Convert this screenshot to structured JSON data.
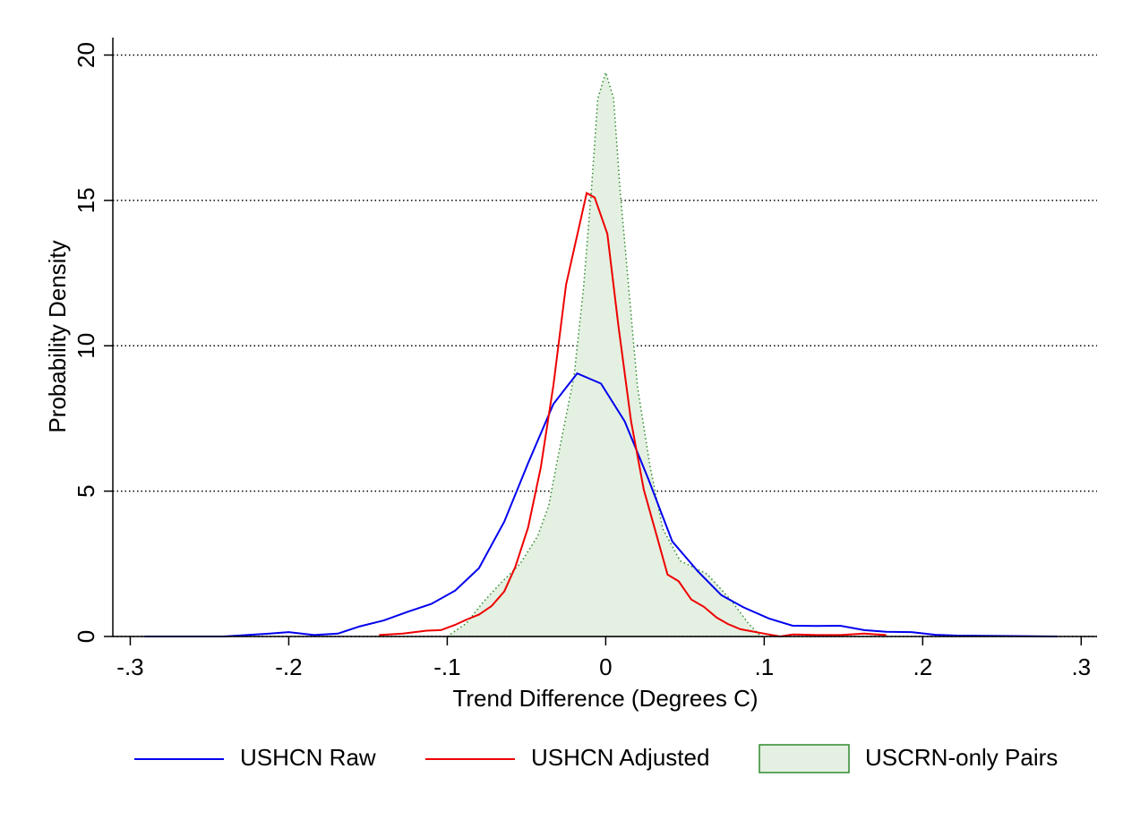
{
  "chart_data": {
    "type": "line",
    "x_label": "Trend Difference (Degrees C)",
    "y_label": "Probability Density",
    "xlim": [
      -0.311,
      0.31
    ],
    "ylim": [
      0,
      20.6
    ],
    "xticks": [
      {
        "value": -0.3,
        "label": "-.3"
      },
      {
        "value": -0.2,
        "label": "-.2"
      },
      {
        "value": -0.1,
        "label": "-.1"
      },
      0,
      {
        "value": 0.1,
        "label": ".1"
      },
      {
        "value": 0.2,
        "label": ".2"
      },
      {
        "value": 0.3,
        "label": ".3"
      }
    ],
    "yticks": [
      0,
      5,
      10,
      15,
      20
    ],
    "grid": true,
    "legend": "bottom",
    "series": [
      {
        "name": "USHCN Raw",
        "color": "#0000ee",
        "style": "line",
        "x": [
          -0.291,
          -0.241,
          -0.212,
          -0.2,
          -0.184,
          -0.169,
          -0.155,
          -0.14,
          -0.125,
          -0.11,
          -0.095,
          -0.08,
          -0.064,
          -0.049,
          -0.033,
          -0.018,
          -0.003,
          0.012,
          0.027,
          0.042,
          0.058,
          0.073,
          0.087,
          0.103,
          0.118,
          0.133,
          0.148,
          0.163,
          0.177,
          0.193,
          0.208,
          0.222,
          0.285
        ],
        "values": [
          0,
          0,
          0.1,
          0.15,
          0.05,
          0.1,
          0.35,
          0.55,
          0.85,
          1.12,
          1.58,
          2.35,
          3.95,
          5.96,
          8.0,
          9.05,
          8.7,
          7.4,
          5.4,
          3.27,
          2.25,
          1.42,
          1.0,
          0.62,
          0.37,
          0.36,
          0.37,
          0.22,
          0.16,
          0.15,
          0.06,
          0.03,
          0
        ]
      },
      {
        "name": "USHCN Adjusted",
        "color": "#ee0000",
        "style": "line",
        "x": [
          -0.143,
          -0.128,
          -0.113,
          -0.104,
          -0.095,
          -0.087,
          -0.08,
          -0.072,
          -0.064,
          -0.057,
          -0.049,
          -0.041,
          -0.033,
          -0.025,
          -0.012,
          -0.007,
          0.001,
          0.008,
          0.016,
          0.024,
          0.031,
          0.039,
          0.046,
          0.054,
          0.062,
          0.07,
          0.077,
          0.085,
          0.1,
          0.11,
          0.118,
          0.133,
          0.148,
          0.163,
          0.177
        ],
        "values": [
          0.05,
          0.1,
          0.2,
          0.22,
          0.4,
          0.6,
          0.75,
          1.05,
          1.55,
          2.4,
          3.75,
          5.8,
          8.65,
          12.1,
          15.25,
          15.1,
          13.85,
          10.7,
          7.4,
          5.05,
          3.7,
          2.13,
          1.9,
          1.27,
          1.02,
          0.65,
          0.43,
          0.25,
          0.1,
          0,
          0.07,
          0.05,
          0.05,
          0.1,
          0.05
        ]
      },
      {
        "name": "USCRN-only Pairs",
        "color": "#2e8b2e",
        "fill": "#e4f0e1",
        "style": "area",
        "x": [
          -0.1,
          -0.088,
          -0.077,
          -0.066,
          -0.054,
          -0.043,
          -0.036,
          -0.029,
          -0.02,
          -0.014,
          -0.009,
          -0.005,
          0,
          0.005,
          0.009,
          0.015,
          0.02,
          0.028,
          0.036,
          0.047,
          0.064,
          0.079,
          0.09,
          0.098
        ],
        "values": [
          0,
          0.45,
          1.2,
          1.85,
          2.5,
          3.45,
          4.5,
          6.5,
          8.95,
          12.0,
          15.4,
          18.5,
          19.4,
          18.5,
          15.4,
          11.7,
          8.6,
          5.85,
          3.7,
          2.6,
          2.15,
          1.25,
          0.45,
          0
        ]
      }
    ]
  }
}
